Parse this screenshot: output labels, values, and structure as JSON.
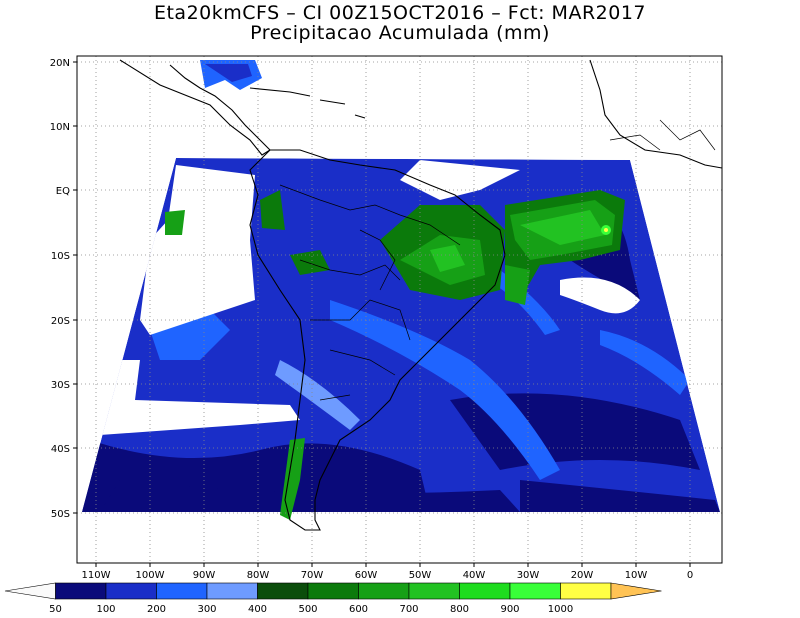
{
  "title": {
    "line1": "Eta20kmCFS – CI 00Z15OCT2016 – Fct: MAR2017",
    "line2": "Precipitacao Acumulada (mm)"
  },
  "map": {
    "lat_labels": [
      "20N",
      "10N",
      "EQ",
      "10S",
      "20S",
      "30S",
      "40S",
      "50S"
    ],
    "lon_labels": [
      "110W",
      "100W",
      "90W",
      "80W",
      "70W",
      "60W",
      "50W",
      "40W",
      "30W",
      "20W",
      "10W",
      "0"
    ],
    "grid": "dotted"
  },
  "legend": {
    "thresholds": [
      "50",
      "100",
      "200",
      "300",
      "400",
      "500",
      "600",
      "700",
      "800",
      "900",
      "1000"
    ],
    "colors": [
      "#fafafa",
      "#0a0a7a",
      "#1a2ec8",
      "#1f64ff",
      "#6e9bff",
      "#0b4d0b",
      "#0b7a0b",
      "#16a016",
      "#22c222",
      "#1edc1e",
      "#39ff39",
      "#ffff44",
      "#ffc355"
    ]
  }
}
